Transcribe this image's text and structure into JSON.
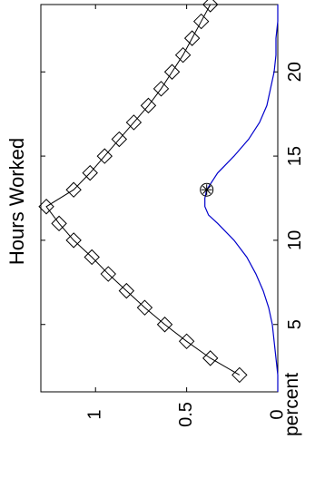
{
  "chart_data": {
    "type": "line",
    "title": "Hours Worked",
    "xlabel": "",
    "ylabel": "percent",
    "xlim": [
      1,
      24
    ],
    "ylim": [
      0,
      1.3
    ],
    "x_ticks": [
      "5",
      "10",
      "15",
      "20"
    ],
    "y_ticks": [
      "0",
      "0.5",
      "1"
    ],
    "orientation": "rotated 90 degrees counter-clockwise",
    "grid": false,
    "legend": "none",
    "series": [
      {
        "color": "#000000",
        "marker": "diamond",
        "x": [
          2,
          3,
          4,
          5,
          6,
          7,
          8,
          9,
          10,
          11,
          12,
          13,
          14,
          15,
          16,
          17,
          18,
          19,
          20,
          21,
          22,
          23,
          24
        ],
        "y": [
          0.21,
          0.37,
          0.5,
          0.62,
          0.73,
          0.83,
          0.93,
          1.02,
          1.12,
          1.2,
          1.27,
          1.12,
          1.03,
          0.95,
          0.87,
          0.79,
          0.71,
          0.64,
          0.58,
          0.52,
          0.47,
          0.42,
          0.37
        ]
      },
      {
        "color": "#0000cc",
        "marker": "none",
        "x": [
          1,
          2,
          3,
          4,
          5,
          6,
          7,
          8,
          9,
          10,
          11,
          11.5,
          12,
          12.5,
          13,
          14,
          15,
          16,
          17,
          18,
          19,
          20,
          21,
          22,
          23,
          24
        ],
        "y": [
          0.0,
          0.0,
          0.01,
          0.02,
          0.03,
          0.05,
          0.08,
          0.12,
          0.17,
          0.24,
          0.33,
          0.38,
          0.4,
          0.4,
          0.39,
          0.33,
          0.24,
          0.16,
          0.1,
          0.06,
          0.04,
          0.02,
          0.01,
          0.01,
          0.0,
          0.0
        ]
      }
    ],
    "annotations": [
      {
        "marker": "circled-asterisk",
        "x": 13,
        "y": 0.39
      }
    ]
  }
}
